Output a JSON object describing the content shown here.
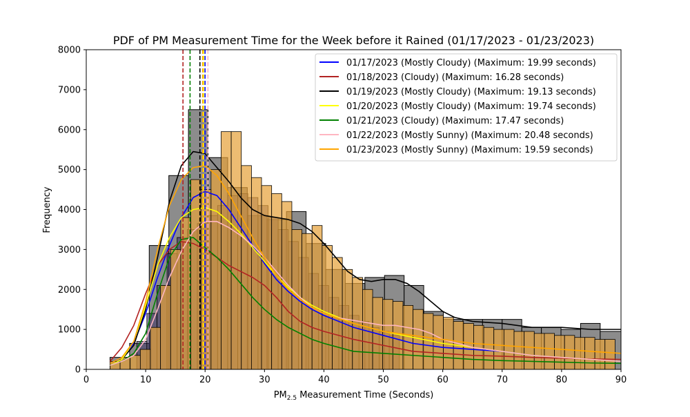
{
  "chart_data": {
    "type": "histogram",
    "title": "PDF of PM Measurement Time for the Week before it Rained (01/17/2023 - 01/23/2023)",
    "xlabel_main": "PM",
    "xlabel_sub": "2.5",
    "xlabel_rest": " Measurement Time (Seconds)",
    "ylabel": "Frequency",
    "xlim": [
      0,
      90
    ],
    "ylim": [
      0,
      8000
    ],
    "x_ticks": [
      0,
      10,
      20,
      30,
      40,
      50,
      60,
      70,
      80,
      90
    ],
    "y_ticks": [
      0,
      1000,
      2000,
      3000,
      4000,
      5000,
      6000,
      7000,
      8000
    ],
    "grid": false,
    "legend_position": "top-right",
    "background_histogram": {
      "color": "#808080",
      "bins": [
        {
          "x0": 4.0,
          "x1": 7.3,
          "y": 300
        },
        {
          "x0": 7.3,
          "x1": 10.6,
          "y": 650
        },
        {
          "x0": 10.6,
          "x1": 13.9,
          "y": 3100
        },
        {
          "x0": 13.9,
          "x1": 17.2,
          "y": 4850
        },
        {
          "x0": 17.2,
          "x1": 20.5,
          "y": 6500
        },
        {
          "x0": 20.5,
          "x1": 23.8,
          "y": 5300
        },
        {
          "x0": 23.8,
          "x1": 27.1,
          "y": 4550
        },
        {
          "x0": 27.1,
          "x1": 30.4,
          "y": 3850
        },
        {
          "x0": 30.4,
          "x1": 33.7,
          "y": 3750
        },
        {
          "x0": 33.7,
          "x1": 37.0,
          "y": 3950
        },
        {
          "x0": 37.0,
          "x1": 40.3,
          "y": 3150
        },
        {
          "x0": 40.3,
          "x1": 43.6,
          "y": 2500
        },
        {
          "x0": 43.6,
          "x1": 46.9,
          "y": 2150
        },
        {
          "x0": 46.9,
          "x1": 50.2,
          "y": 2300
        },
        {
          "x0": 50.2,
          "x1": 53.5,
          "y": 2350
        },
        {
          "x0": 53.5,
          "x1": 56.8,
          "y": 2100
        },
        {
          "x0": 56.8,
          "x1": 60.1,
          "y": 1450
        },
        {
          "x0": 60.1,
          "x1": 63.4,
          "y": 1250
        },
        {
          "x0": 63.4,
          "x1": 66.7,
          "y": 1250
        },
        {
          "x0": 66.7,
          "x1": 70.0,
          "y": 1250
        },
        {
          "x0": 70.0,
          "x1": 73.3,
          "y": 1250
        },
        {
          "x0": 73.3,
          "x1": 76.6,
          "y": 1050
        },
        {
          "x0": 76.6,
          "x1": 79.9,
          "y": 1050
        },
        {
          "x0": 79.9,
          "x1": 83.2,
          "y": 1000
        },
        {
          "x0": 83.2,
          "x1": 86.5,
          "y": 1150
        },
        {
          "x0": 86.5,
          "x1": 90.0,
          "y": 950
        }
      ]
    },
    "mid_histogram": {
      "color": "#3a2f63",
      "bin_width": 1.7,
      "x_start": 8.5,
      "values": [
        700,
        1400,
        2100,
        2900,
        3300,
        3500,
        3650,
        3850,
        4100,
        4350,
        4400,
        4300,
        4100,
        3800,
        3500,
        3200,
        2800,
        2400,
        2100,
        1800,
        1600,
        1350,
        1200,
        1050,
        950,
        850
      ]
    },
    "front_histogram": {
      "color": "#e6a23c",
      "bin_width": 1.7,
      "x_start": 4.0,
      "values": [
        200,
        300,
        350,
        500,
        1050,
        2100,
        3000,
        3800,
        4750,
        4500,
        5000,
        5950,
        5950,
        5100,
        4800,
        4600,
        4400,
        4200,
        3500,
        3400,
        3600,
        3100,
        2800,
        2500,
        2300,
        2000,
        1800,
        1750,
        1700,
        1600,
        1500,
        1400,
        1350,
        1300,
        1200,
        1150,
        1100,
        1050,
        1000,
        1000,
        950,
        950,
        900,
        900,
        850,
        850,
        800,
        800,
        750,
        750
      ]
    },
    "series": [
      {
        "name": "01/17/2023 (Mostly Cloudy) (Maximum: 19.99 seconds)",
        "color": "#0000ff",
        "max_line": 19.99,
        "x": [
          4,
          6,
          8,
          10,
          12,
          14,
          16,
          18,
          20,
          22,
          24,
          26,
          28,
          30,
          32,
          34,
          36,
          38,
          40,
          45,
          50,
          55,
          60,
          65,
          70,
          75,
          80,
          85,
          90
        ],
        "y": [
          150,
          300,
          650,
          1400,
          2300,
          3100,
          3800,
          4300,
          4450,
          4350,
          4000,
          3550,
          3100,
          2650,
          2250,
          1950,
          1700,
          1500,
          1350,
          1050,
          850,
          650,
          550,
          500,
          450,
          350,
          300,
          250,
          200
        ]
      },
      {
        "name": "01/18/2023 (Cloudy) (Maximum: 16.28 seconds)",
        "color": "#b22222",
        "max_line": 16.28,
        "x": [
          4,
          6,
          8,
          10,
          12,
          14,
          16,
          18,
          20,
          22,
          24,
          26,
          28,
          30,
          32,
          34,
          36,
          38,
          40,
          45,
          50,
          55,
          60,
          65,
          70,
          75,
          80,
          85,
          90
        ],
        "y": [
          200,
          550,
          1100,
          1900,
          2600,
          3000,
          3200,
          3150,
          3000,
          2800,
          2600,
          2450,
          2300,
          2100,
          1800,
          1450,
          1200,
          1050,
          950,
          750,
          600,
          450,
          400,
          350,
          330,
          300,
          280,
          260,
          250
        ]
      },
      {
        "name": "01/19/2023 (Mostly Cloudy) (Maximum: 19.13 seconds)",
        "color": "#000000",
        "max_line": 19.13,
        "x": [
          4,
          6,
          8,
          10,
          12,
          14,
          16,
          18,
          20,
          22,
          24,
          26,
          28,
          30,
          32,
          34,
          36,
          38,
          40,
          42,
          44,
          46,
          48,
          50,
          52,
          54,
          56,
          58,
          60,
          62,
          65,
          70,
          75,
          80,
          85,
          90
        ],
        "y": [
          100,
          250,
          600,
          1500,
          2800,
          4200,
          5100,
          5450,
          5400,
          5050,
          4700,
          4300,
          4000,
          3850,
          3800,
          3750,
          3650,
          3450,
          3150,
          2800,
          2450,
          2250,
          2200,
          2250,
          2250,
          2150,
          1950,
          1700,
          1450,
          1300,
          1200,
          1150,
          1050,
          1050,
          1000,
          1000
        ]
      },
      {
        "name": "01/20/2023 (Mostly Cloudy) (Maximum: 19.74 seconds)",
        "color": "#ffff00",
        "max_line": 19.74,
        "x": [
          4,
          6,
          8,
          10,
          12,
          14,
          16,
          18,
          20,
          22,
          24,
          26,
          28,
          30,
          32,
          34,
          36,
          38,
          40,
          45,
          50,
          55,
          60,
          65,
          70,
          75,
          80,
          85,
          90
        ],
        "y": [
          100,
          250,
          700,
          1600,
          2600,
          3300,
          3800,
          4000,
          4050,
          3950,
          3700,
          3400,
          3050,
          2700,
          2350,
          2050,
          1800,
          1600,
          1450,
          1150,
          950,
          800,
          650,
          550,
          450,
          350,
          300,
          250,
          200
        ]
      },
      {
        "name": "01/21/2023 (Cloudy) (Maximum: 17.47 seconds)",
        "color": "#008000",
        "max_line": 17.47,
        "x": [
          4,
          6,
          8,
          10,
          12,
          14,
          16,
          18,
          20,
          22,
          24,
          26,
          28,
          30,
          32,
          34,
          36,
          38,
          40,
          45,
          50,
          55,
          60,
          65,
          70,
          75,
          80,
          85,
          90
        ],
        "y": [
          100,
          200,
          400,
          900,
          1900,
          2800,
          3250,
          3300,
          3050,
          2800,
          2500,
          2150,
          1800,
          1500,
          1250,
          1050,
          900,
          750,
          650,
          450,
          400,
          350,
          300,
          250,
          220,
          200,
          180,
          160,
          150
        ]
      },
      {
        "name": "01/22/2023 (Mostly Sunny) (Maximum: 20.48 seconds)",
        "color": "#ffb6c1",
        "max_line": 20.48,
        "x": [
          4,
          6,
          8,
          10,
          12,
          14,
          16,
          18,
          20,
          22,
          24,
          26,
          28,
          30,
          32,
          34,
          36,
          38,
          40,
          42,
          44,
          46,
          48,
          50,
          52,
          54,
          56,
          58,
          60,
          65,
          70,
          75,
          80,
          85,
          90
        ],
        "y": [
          100,
          200,
          350,
          750,
          1500,
          2300,
          2950,
          3450,
          3700,
          3700,
          3550,
          3350,
          3100,
          2800,
          2450,
          2100,
          1800,
          1550,
          1400,
          1300,
          1250,
          1200,
          1150,
          1100,
          1100,
          1050,
          1000,
          900,
          750,
          550,
          450,
          350,
          300,
          250,
          200
        ]
      },
      {
        "name": "01/23/2023 (Mostly Sunny) (Maximum: 19.59 seconds)",
        "color": "#ffa500",
        "max_line": 19.59,
        "x": [
          4,
          6,
          8,
          10,
          12,
          14,
          16,
          18,
          20,
          22,
          24,
          26,
          28,
          30,
          32,
          34,
          36,
          38,
          40,
          45,
          50,
          55,
          60,
          65,
          70,
          75,
          80,
          85,
          90
        ],
        "y": [
          150,
          300,
          700,
          1700,
          3000,
          4100,
          4750,
          5050,
          5100,
          4850,
          4400,
          3850,
          3300,
          2800,
          2350,
          2000,
          1750,
          1550,
          1400,
          1150,
          950,
          850,
          750,
          650,
          600,
          550,
          500,
          450,
          400
        ]
      }
    ]
  }
}
